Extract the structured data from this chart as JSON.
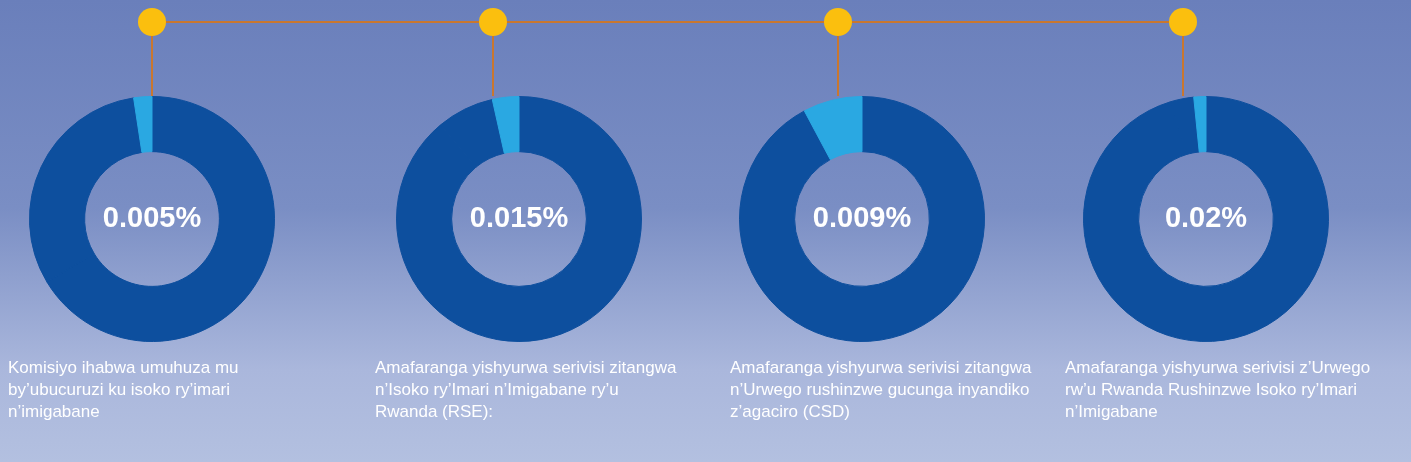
{
  "chart_data": [
    {
      "type": "donut",
      "title": "Komisiyo ihabwa umuhuza mu by’ubucuruzi ku isoko ry’imari n’imigabane",
      "categories": [
        null,
        null,
        null
      ],
      "values": [
        66.4,
        31.2,
        2.4
      ],
      "colors": [
        "#0d4f9e",
        "#0d4f9e",
        "#2aa8e2"
      ],
      "annotations": [
        "0.005%"
      ]
    },
    {
      "type": "donut",
      "title": "Amafaranga yishyurwa serivisi zitangwa n’Isoko ry’Imari n’Imigabane ry’u Rwanda (RSE):",
      "categories": [
        null,
        null,
        null
      ],
      "values": [
        88.9,
        7.6,
        3.5
      ],
      "colors": [
        "#0d4f9e",
        "#0d4f9e",
        "#2aa8e2"
      ],
      "annotations": [
        "0.015%"
      ]
    },
    {
      "type": "donut",
      "title": "Amafaranga yishyurwa serivisi zitangwa n’Urwego rushinzwe gucunga inyandiko z’agaciro (CSD)",
      "categories": [
        null,
        null
      ],
      "values": [
        92.2,
        7.8
      ],
      "colors": [
        "#0d4f9e",
        "#2aa8e2"
      ],
      "annotations": [
        "0.009%"
      ]
    },
    {
      "type": "donut",
      "title": "Amafaranga yishyurwa serivisi z’Urwego rw’u Rwanda Rushinzwe Isoko ry’Imari n’Imigabane",
      "categories": [
        null,
        null,
        null
      ],
      "values": [
        95.3,
        3.1,
        1.6
      ],
      "colors": [
        "#0d4f9e",
        "#0d4f9e",
        "#2aa8e2"
      ],
      "annotations": [
        "0.02%"
      ]
    }
  ]
}
